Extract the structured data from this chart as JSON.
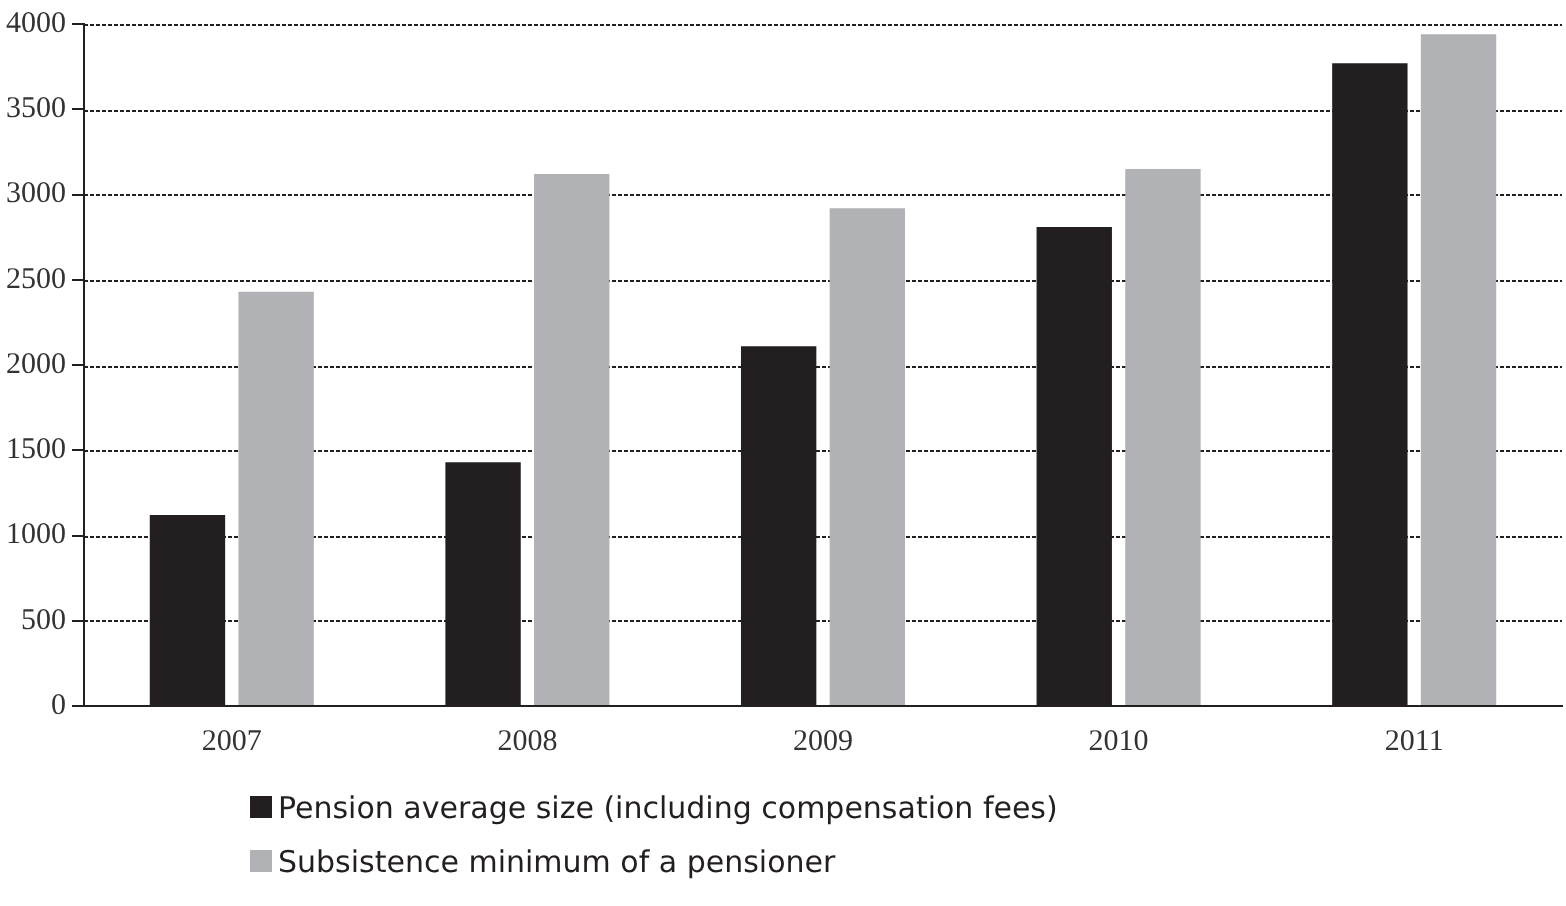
{
  "chart_data": {
    "type": "bar",
    "categories": [
      "2007",
      "2008",
      "2009",
      "2010",
      "2011"
    ],
    "series": [
      {
        "name": "Pension average size (including compensation fees)",
        "color": "#231f20",
        "values": [
          1120,
          1430,
          2110,
          2810,
          3770
        ]
      },
      {
        "name": "Subsistence minimum of a pensioner",
        "color": "#b1b2b5",
        "values": [
          2430,
          3120,
          2920,
          3150,
          3940
        ]
      }
    ],
    "ylim": [
      0,
      4000
    ],
    "yticks": [
      0,
      500,
      1000,
      1500,
      2000,
      2500,
      3000,
      3500,
      4000
    ],
    "grid": "y",
    "legend": "bottom"
  }
}
